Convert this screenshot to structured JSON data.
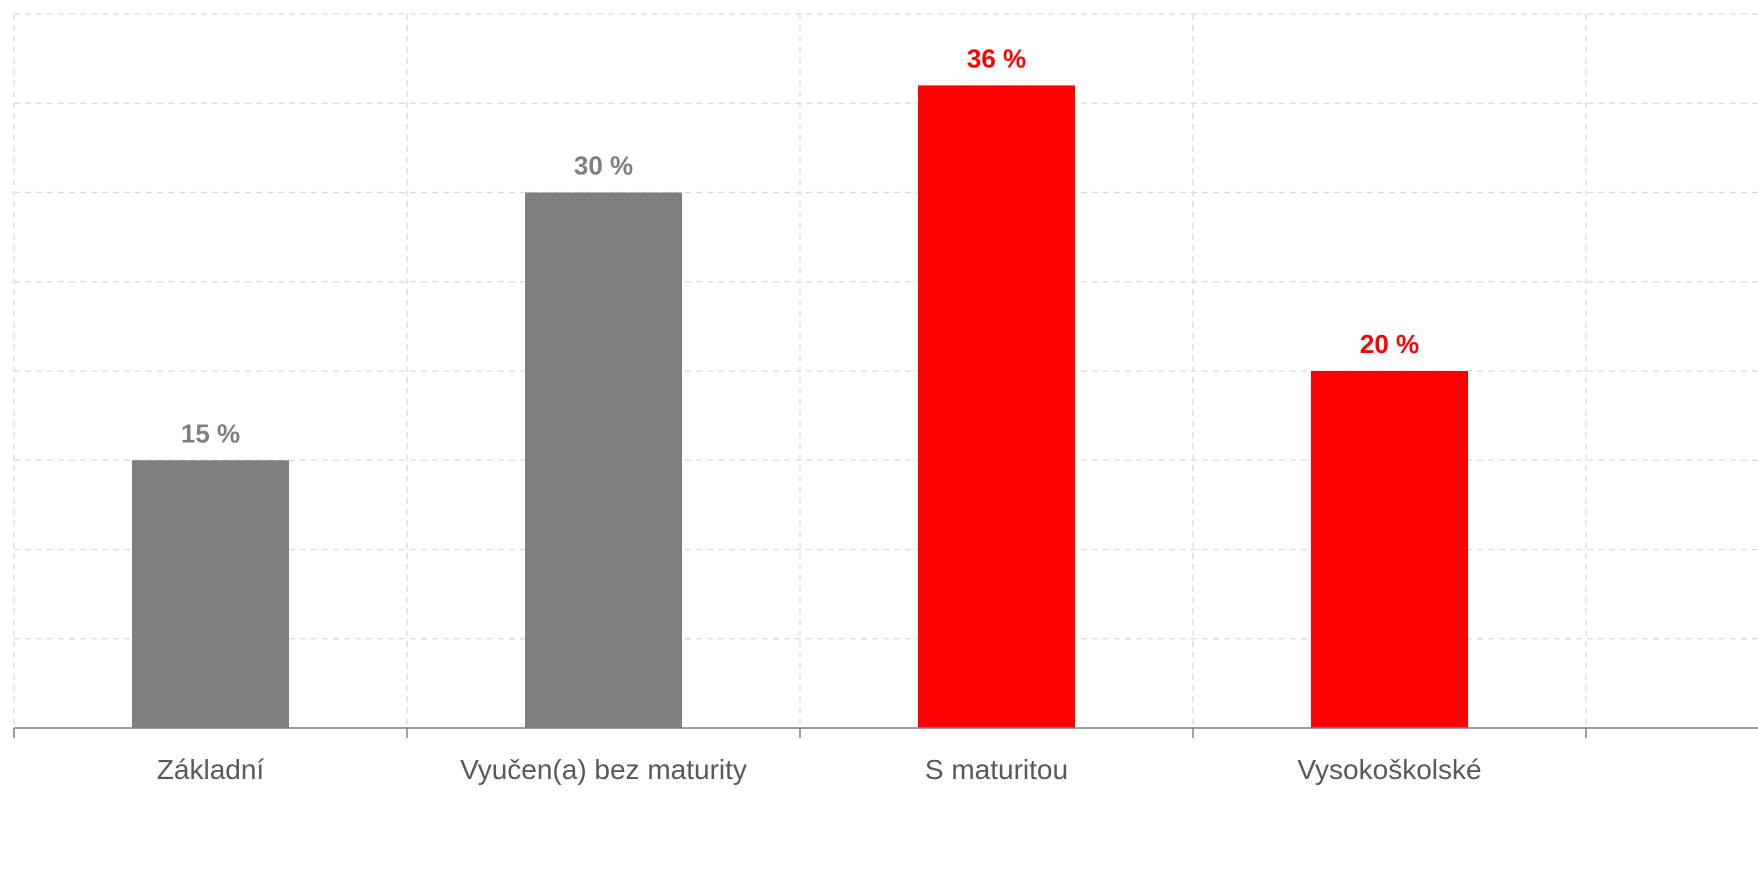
{
  "chart_data": {
    "type": "bar",
    "categories": [
      "Základní",
      "Vyučen(a) bez maturity",
      "S maturitou",
      "Vysokoškolské"
    ],
    "values": [
      15,
      30,
      36,
      20
    ],
    "data_labels": [
      "15 %",
      "30 %",
      "36 %",
      "20 %"
    ],
    "bar_colors": [
      "#7f7f7f",
      "#7f7f7f",
      "#ff0000",
      "#ff0000"
    ],
    "label_colors": [
      "#7f7f7f",
      "#7f7f7f",
      "#ff0000",
      "#ff0000"
    ],
    "ylim": [
      0,
      40
    ],
    "ytick_step": 5,
    "grid": true,
    "legend": false,
    "title": "",
    "xlabel": "",
    "ylabel": ""
  },
  "colors": {
    "gridline": "#d9d9d9",
    "axis": "#7f7f7f",
    "tick_text": "#595959"
  }
}
